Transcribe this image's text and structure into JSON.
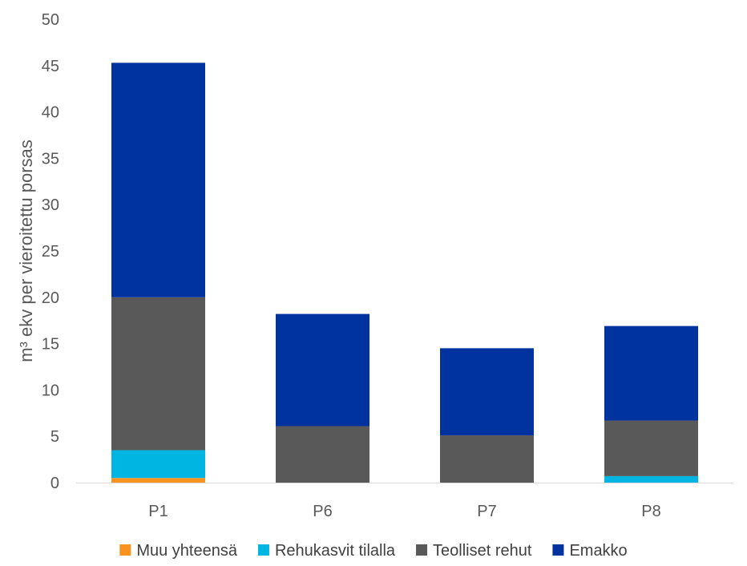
{
  "chart_data": {
    "type": "bar",
    "stacked": true,
    "categories": [
      "P1",
      "P6",
      "P7",
      "P8"
    ],
    "series": [
      {
        "name": "Muu yhteensä",
        "color": "#F7931E",
        "values": [
          0.5,
          0.0,
          0.0,
          0.0
        ]
      },
      {
        "name": "Rehukasvit tilalla",
        "color": "#00B5E2",
        "values": [
          3.0,
          0.0,
          0.0,
          0.7
        ]
      },
      {
        "name": "Teolliset rehut",
        "color": "#595959",
        "values": [
          16.5,
          6.1,
          5.1,
          6.0
        ]
      },
      {
        "name": "Emakko",
        "color": "#0033A0",
        "values": [
          25.3,
          12.1,
          9.4,
          10.2
        ]
      }
    ],
    "title": "",
    "xlabel": "",
    "ylabel": "m³ ekv per vieroitettu porsas",
    "ylim": [
      0,
      50
    ],
    "yticks": [
      0,
      5,
      10,
      15,
      20,
      25,
      30,
      35,
      40,
      45,
      50
    ],
    "grid": false,
    "legend_position": "bottom"
  }
}
